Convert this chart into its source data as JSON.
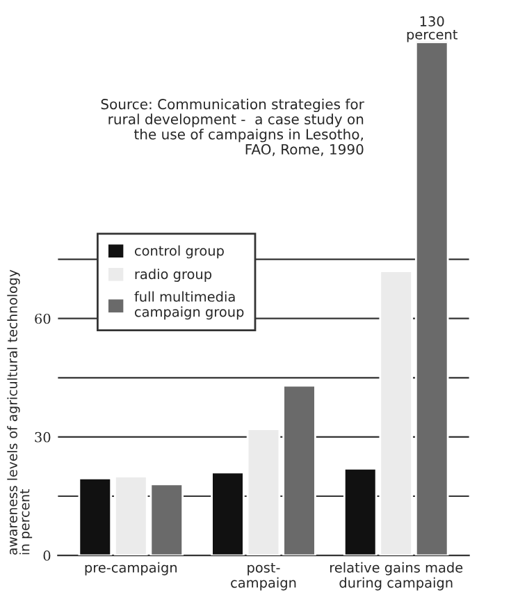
{
  "chart_data": {
    "type": "bar",
    "ylabel": "awareness levels of agricultural technology\nin percent",
    "categories": [
      "pre-campaign",
      "post-\ncampaign",
      "relative gains made\nduring campaign"
    ],
    "series": [
      {
        "name": "control group",
        "color": "#111111",
        "values": [
          19.5,
          21,
          22
        ]
      },
      {
        "name": "radio group",
        "color": "#ebebeb",
        "values": [
          20,
          32,
          72
        ]
      },
      {
        "name": "full multimedia\ncampaign group",
        "color": "#6a6a6a",
        "values": [
          18,
          43,
          130
        ],
        "value_labels": [
          null,
          null,
          "130\npercent"
        ]
      }
    ],
    "ylim": [
      0,
      130
    ],
    "yticks": [
      0,
      {
        "value": 15,
        "label": null
      },
      30,
      {
        "value": 45,
        "label": null
      },
      60,
      {
        "value": 75,
        "label": null
      }
    ],
    "grid": "y",
    "legend": "top left",
    "annotations": [
      "Source: Communication strategies for\nrural development -  a case study on\nthe use of campaigns in Lesotho,\nFAO, Rome, 1990"
    ]
  }
}
